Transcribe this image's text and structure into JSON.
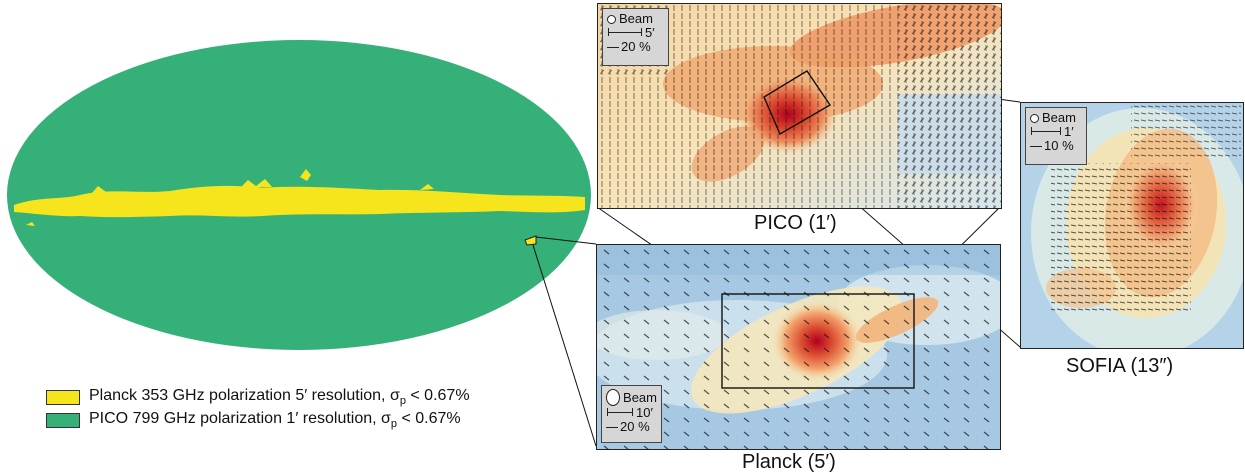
{
  "legend": [
    {
      "text": "Planck 353 GHz polarization 5′ resolution, σ",
      "sub": "p",
      "tail": " < 0.67%",
      "color": "#f6e51c"
    },
    {
      "text": "PICO 799 GHz polarization 1′ resolution, σ",
      "sub": "p",
      "tail": " < 0.67%",
      "color": "#35b078"
    }
  ],
  "panels": {
    "pico": {
      "caption": "PICO (1′)",
      "beam_label": "Beam",
      "scale": "5′",
      "pol": "20 %"
    },
    "planck": {
      "caption": "Planck (5′)",
      "beam_label": "Beam",
      "scale": "10′",
      "pol": "20 %"
    },
    "sofia": {
      "caption": "SOFIA (13″)",
      "beam_label": "Beam",
      "scale": "1′",
      "pol": "10 %"
    }
  },
  "colors": {
    "mollweide_fill": "#35b078",
    "galactic_band": "#f6e51c",
    "heat_low": "#3a7fc0",
    "heat_high": "#b0001e"
  }
}
